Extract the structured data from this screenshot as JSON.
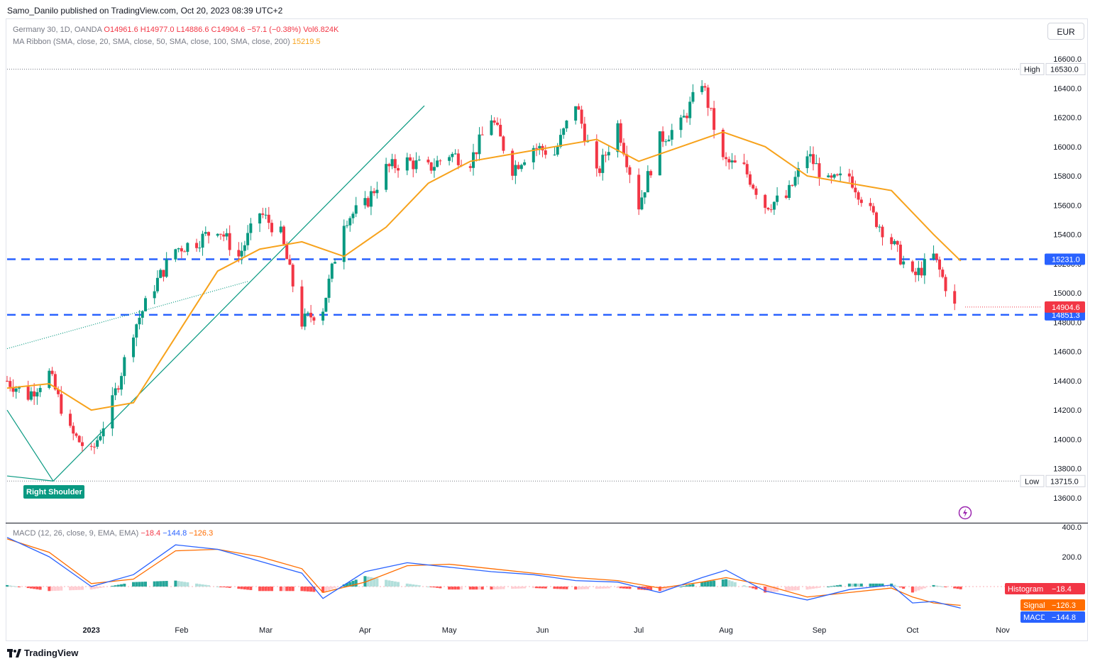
{
  "publisher": "Samo_Danilo published on TradingView.com, Oct 20, 2023 08:39 UTC+2",
  "header": {
    "symbol": "Germany 30, 1D, OANDA",
    "o": "O14961.6",
    "h": "H14977.0",
    "l": "L14886.6",
    "c": "C14904.6",
    "change": "−57.1 (−0.38%)",
    "vol": "Vol6.824K",
    "ma_label": "MA Ribbon (SMA, close, 20, SMA, close, 50, SMA, close, 100, SMA, close, 200)",
    "ma_value": "15219.5",
    "macd_label": "MACD (12, 26, close, 9, EMA, EMA)",
    "macd_hist": "−18.4",
    "macd_macd": "−144.8",
    "macd_signal": "−126.3"
  },
  "currency": "EUR",
  "footer": {
    "logo_text": "TradingView"
  },
  "colors": {
    "up": "#089981",
    "down": "#f23645",
    "ma": "#f7a21b",
    "level": "#2962ff",
    "macd": "#2962ff",
    "signal": "#ff6d00",
    "trendline": "#089981"
  },
  "chart_data": [
    {
      "type": "candlestick",
      "y_ticks": [
        13600,
        13800,
        14000,
        14200,
        14400,
        14600,
        14800,
        15000,
        15200,
        15400,
        15600,
        15800,
        16000,
        16200,
        16400,
        16600
      ],
      "y_tick_labels": [
        "13600.0",
        "13800.0",
        "14000.0",
        "14200.0",
        "14400.0",
        "14600.0",
        "14800.0",
        "15000.0",
        "15200.0",
        "15400.0",
        "15600.0",
        "15800.0",
        "16000.0",
        "16200.0",
        "16400.0",
        "16600.0"
      ],
      "ylim": [
        13500,
        16700
      ],
      "x_tick_labels": [
        "2023",
        "Feb",
        "Mar",
        "Apr",
        "May",
        "Jun",
        "Jul",
        "Aug",
        "Sep",
        "Oct",
        "Nov"
      ],
      "x_range": [
        "2022-12-05",
        "2023-11-05"
      ],
      "x_ticks": [
        "2023-01-02",
        "2023-02-01",
        "2023-03-01",
        "2023-04-03",
        "2023-05-01",
        "2023-06-01",
        "2023-07-03",
        "2023-08-01",
        "2023-09-01",
        "2023-10-02",
        "2023-11-01"
      ],
      "high": {
        "label": "High",
        "value": 16530.0,
        "text": "16530.0"
      },
      "low": {
        "label": "Low",
        "value": 13715.0,
        "text": "13715.0"
      },
      "levels": [
        {
          "value": 15231.0,
          "text": "15231.0"
        },
        {
          "value": 14851.3,
          "text": "14851.3"
        }
      ],
      "last_price": {
        "value": 14904.6,
        "text": "14904.6"
      },
      "annotation": "Right Shoulder",
      "series_points": {
        "price_path_close": [
          [
            "2022-12-05",
            14400
          ],
          [
            "2022-12-12",
            14300
          ],
          [
            "2022-12-19",
            14450
          ],
          [
            "2022-12-26",
            14050
          ],
          [
            "2023-01-02",
            13900
          ],
          [
            "2023-01-09",
            14250
          ],
          [
            "2023-01-16",
            14750
          ],
          [
            "2023-01-23",
            15050
          ],
          [
            "2023-01-30",
            15300
          ],
          [
            "2023-02-06",
            15350
          ],
          [
            "2023-02-13",
            15450
          ],
          [
            "2023-02-20",
            15250
          ],
          [
            "2023-02-27",
            15550
          ],
          [
            "2023-03-06",
            15400
          ],
          [
            "2023-03-13",
            14800
          ],
          [
            "2023-03-20",
            14900
          ],
          [
            "2023-03-27",
            15500
          ],
          [
            "2023-04-03",
            15600
          ],
          [
            "2023-04-10",
            15850
          ],
          [
            "2023-04-17",
            15900
          ],
          [
            "2023-04-24",
            15850
          ],
          [
            "2023-05-01",
            15950
          ],
          [
            "2023-05-08",
            15900
          ],
          [
            "2023-05-15",
            16200
          ],
          [
            "2023-05-22",
            15850
          ],
          [
            "2023-05-29",
            16000
          ],
          [
            "2023-06-05",
            15950
          ],
          [
            "2023-06-12",
            16300
          ],
          [
            "2023-06-19",
            15800
          ],
          [
            "2023-06-26",
            16150
          ],
          [
            "2023-07-03",
            15600
          ],
          [
            "2023-07-10",
            16050
          ],
          [
            "2023-07-17",
            16150
          ],
          [
            "2023-07-24",
            16450
          ],
          [
            "2023-07-31",
            15900
          ],
          [
            "2023-08-07",
            15850
          ],
          [
            "2023-08-14",
            15600
          ],
          [
            "2023-08-21",
            15650
          ],
          [
            "2023-08-28",
            15950
          ],
          [
            "2023-09-04",
            15750
          ],
          [
            "2023-09-11",
            15800
          ],
          [
            "2023-09-18",
            15550
          ],
          [
            "2023-09-25",
            15350
          ],
          [
            "2023-10-02",
            15100
          ],
          [
            "2023-10-09",
            15250
          ],
          [
            "2023-10-16",
            14904.6
          ]
        ],
        "ma20": [
          [
            "2022-12-05",
            14350
          ],
          [
            "2022-12-19",
            14380
          ],
          [
            "2023-01-02",
            14200
          ],
          [
            "2023-01-16",
            14250
          ],
          [
            "2023-01-30",
            14700
          ],
          [
            "2023-02-13",
            15150
          ],
          [
            "2023-02-27",
            15300
          ],
          [
            "2023-03-13",
            15350
          ],
          [
            "2023-03-27",
            15250
          ],
          [
            "2023-04-10",
            15450
          ],
          [
            "2023-04-24",
            15750
          ],
          [
            "2023-05-08",
            15900
          ],
          [
            "2023-05-22",
            15950
          ],
          [
            "2023-06-05",
            16000
          ],
          [
            "2023-06-19",
            16050
          ],
          [
            "2023-07-03",
            15900
          ],
          [
            "2023-07-17",
            16000
          ],
          [
            "2023-07-31",
            16100
          ],
          [
            "2023-08-14",
            16000
          ],
          [
            "2023-08-28",
            15800
          ],
          [
            "2023-09-11",
            15750
          ],
          [
            "2023-09-25",
            15700
          ],
          [
            "2023-10-09",
            15400
          ],
          [
            "2023-10-18",
            15219.5
          ]
        ]
      }
    },
    {
      "type": "bar",
      "name": "MACD",
      "y_ticks": [
        200,
        400
      ],
      "y_tick_labels": [
        "200.0",
        "400.0"
      ],
      "ylim": [
        -200,
        450
      ],
      "hist_label": "Histogram",
      "hist_value": -18.4,
      "signal_label": "Signal",
      "signal_value": -126.3,
      "macd_label": "MACD",
      "macd_value": -144.8,
      "macd_points": [
        [
          "2022-12-05",
          330
        ],
        [
          "2022-12-19",
          200
        ],
        [
          "2023-01-02",
          0
        ],
        [
          "2023-01-16",
          80
        ],
        [
          "2023-01-30",
          280
        ],
        [
          "2023-02-13",
          250
        ],
        [
          "2023-02-27",
          170
        ],
        [
          "2023-03-13",
          90
        ],
        [
          "2023-03-20",
          -80
        ],
        [
          "2023-04-03",
          100
        ],
        [
          "2023-04-17",
          160
        ],
        [
          "2023-05-01",
          130
        ],
        [
          "2023-05-15",
          100
        ],
        [
          "2023-05-29",
          80
        ],
        [
          "2023-06-12",
          40
        ],
        [
          "2023-06-26",
          30
        ],
        [
          "2023-07-10",
          -40
        ],
        [
          "2023-07-24",
          60
        ],
        [
          "2023-08-01",
          110
        ],
        [
          "2023-08-14",
          -30
        ],
        [
          "2023-08-28",
          -90
        ],
        [
          "2023-09-11",
          -20
        ],
        [
          "2023-09-25",
          10
        ],
        [
          "2023-10-02",
          -110
        ],
        [
          "2023-10-09",
          -100
        ],
        [
          "2023-10-18",
          -144.8
        ]
      ],
      "signal_points": [
        [
          "2022-12-05",
          320
        ],
        [
          "2022-12-19",
          230
        ],
        [
          "2023-01-02",
          20
        ],
        [
          "2023-01-16",
          50
        ],
        [
          "2023-01-30",
          240
        ],
        [
          "2023-02-13",
          250
        ],
        [
          "2023-02-27",
          200
        ],
        [
          "2023-03-13",
          120
        ],
        [
          "2023-03-20",
          -40
        ],
        [
          "2023-04-03",
          30
        ],
        [
          "2023-04-17",
          140
        ],
        [
          "2023-05-01",
          150
        ],
        [
          "2023-05-15",
          120
        ],
        [
          "2023-05-29",
          90
        ],
        [
          "2023-06-12",
          60
        ],
        [
          "2023-06-26",
          40
        ],
        [
          "2023-07-10",
          -10
        ],
        [
          "2023-07-24",
          30
        ],
        [
          "2023-08-01",
          60
        ],
        [
          "2023-08-14",
          10
        ],
        [
          "2023-08-28",
          -70
        ],
        [
          "2023-09-11",
          -40
        ],
        [
          "2023-09-25",
          -10
        ],
        [
          "2023-10-02",
          -70
        ],
        [
          "2023-10-09",
          -110
        ],
        [
          "2023-10-18",
          -126.3
        ]
      ]
    }
  ]
}
